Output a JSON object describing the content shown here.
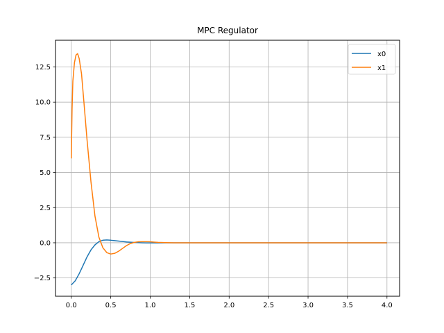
{
  "chart_data": {
    "type": "line",
    "title": "MPC Regulator",
    "xlabel": "",
    "ylabel": "",
    "xlim": [
      -0.2,
      4.16
    ],
    "ylim": [
      -3.8,
      14.4
    ],
    "xticks": [
      0.0,
      0.5,
      1.0,
      1.5,
      2.0,
      2.5,
      3.0,
      3.5,
      4.0
    ],
    "xtick_labels": [
      "0.0",
      "0.5",
      "1.0",
      "1.5",
      "2.0",
      "2.5",
      "3.0",
      "3.5",
      "4.0"
    ],
    "yticks": [
      -2.5,
      0.0,
      2.5,
      5.0,
      7.5,
      10.0,
      12.5
    ],
    "ytick_labels": [
      "−2.5",
      "0.0",
      "2.5",
      "5.0",
      "7.5",
      "10.0",
      "12.5"
    ],
    "grid": true,
    "legend_position": "top-right",
    "series": [
      {
        "name": "x0",
        "color": "#1f77b4",
        "x": [
          0.0,
          0.05,
          0.1,
          0.15,
          0.2,
          0.25,
          0.3,
          0.35,
          0.4,
          0.45,
          0.5,
          0.55,
          0.6,
          0.65,
          0.7,
          0.75,
          0.8,
          0.85,
          0.9,
          0.95,
          1.0,
          1.1,
          1.2,
          1.4,
          1.6,
          2.0,
          2.5,
          3.0,
          3.5,
          4.0
        ],
        "y": [
          -3.0,
          -2.7,
          -2.2,
          -1.6,
          -1.0,
          -0.5,
          -0.15,
          0.08,
          0.18,
          0.2,
          0.18,
          0.15,
          0.12,
          0.09,
          0.06,
          0.04,
          0.02,
          0.01,
          0.0,
          -0.01,
          -0.01,
          -0.01,
          0.0,
          0.0,
          0.0,
          0.0,
          0.0,
          0.0,
          0.0,
          0.0
        ]
      },
      {
        "name": "x1",
        "color": "#ff7f0e",
        "x": [
          0.0,
          0.01,
          0.02,
          0.04,
          0.06,
          0.08,
          0.1,
          0.13,
          0.16,
          0.2,
          0.25,
          0.3,
          0.35,
          0.4,
          0.45,
          0.5,
          0.55,
          0.6,
          0.65,
          0.7,
          0.75,
          0.8,
          0.85,
          0.9,
          0.95,
          1.0,
          1.05,
          1.1,
          1.2,
          1.3,
          1.4,
          1.6,
          2.0,
          2.5,
          3.0,
          3.5,
          4.0
        ],
        "y": [
          6.0,
          9.5,
          11.5,
          12.8,
          13.35,
          13.45,
          13.1,
          12.0,
          10.0,
          7.3,
          4.3,
          1.9,
          0.4,
          -0.35,
          -0.7,
          -0.8,
          -0.75,
          -0.6,
          -0.4,
          -0.2,
          -0.05,
          0.03,
          0.07,
          0.08,
          0.08,
          0.07,
          0.05,
          0.03,
          0.01,
          0.0,
          0.0,
          0.0,
          0.0,
          0.0,
          0.0,
          0.0,
          0.0
        ]
      }
    ]
  }
}
